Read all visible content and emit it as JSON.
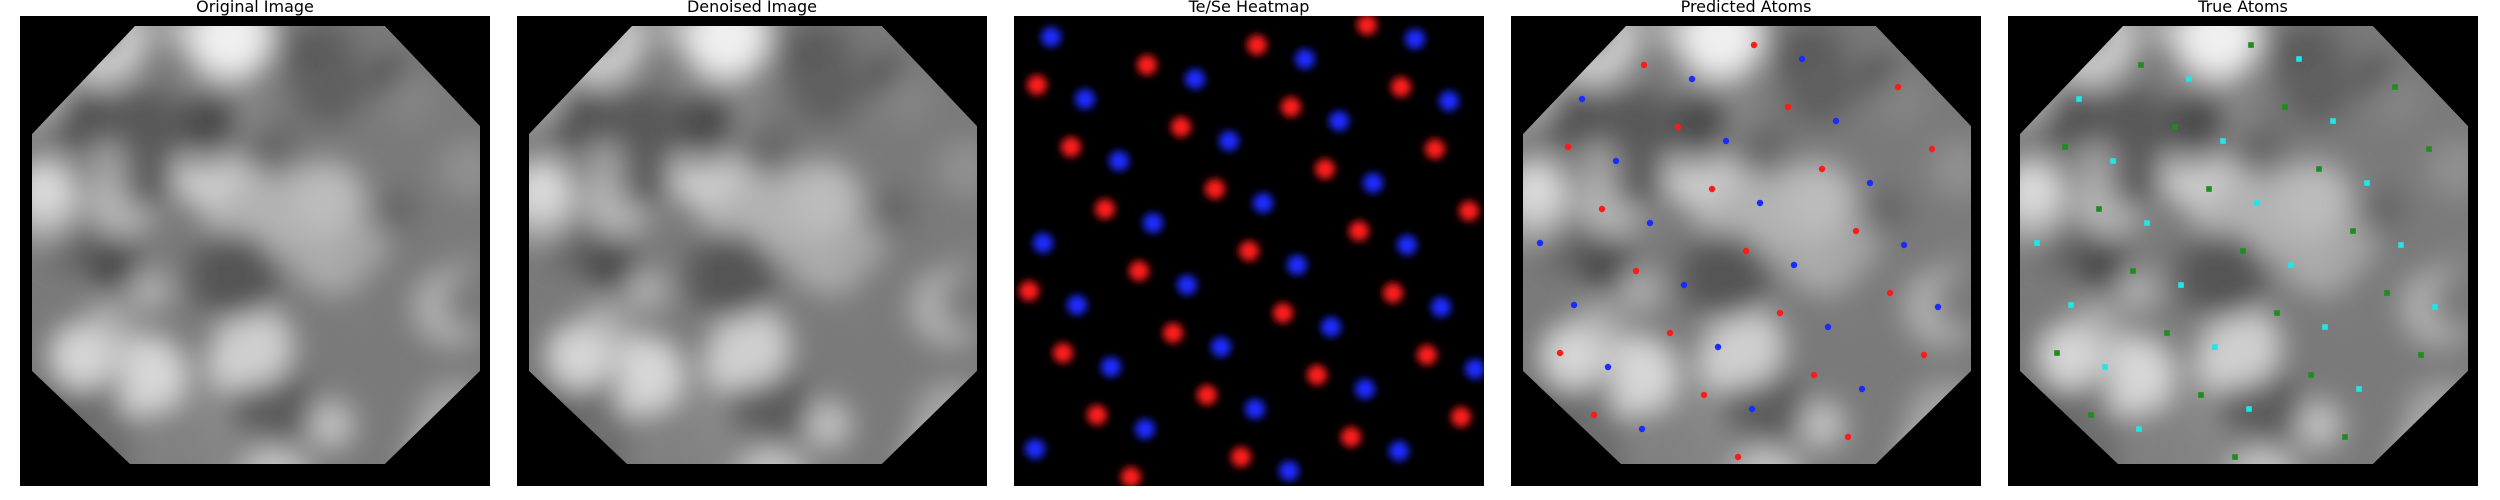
{
  "panels": [
    {
      "title": "Original Image"
    },
    {
      "title": "Denoised Image"
    },
    {
      "title": "Te/Se Heatmap"
    },
    {
      "title": "Predicted Atoms"
    },
    {
      "title": "True Atoms"
    }
  ],
  "colors": {
    "te": "#ff1a1a",
    "se": "#1a2bff",
    "true_dark": "#1e8c1e",
    "true_cyan": "#22e6e6",
    "background": "#000000"
  },
  "legend_note": ""
}
